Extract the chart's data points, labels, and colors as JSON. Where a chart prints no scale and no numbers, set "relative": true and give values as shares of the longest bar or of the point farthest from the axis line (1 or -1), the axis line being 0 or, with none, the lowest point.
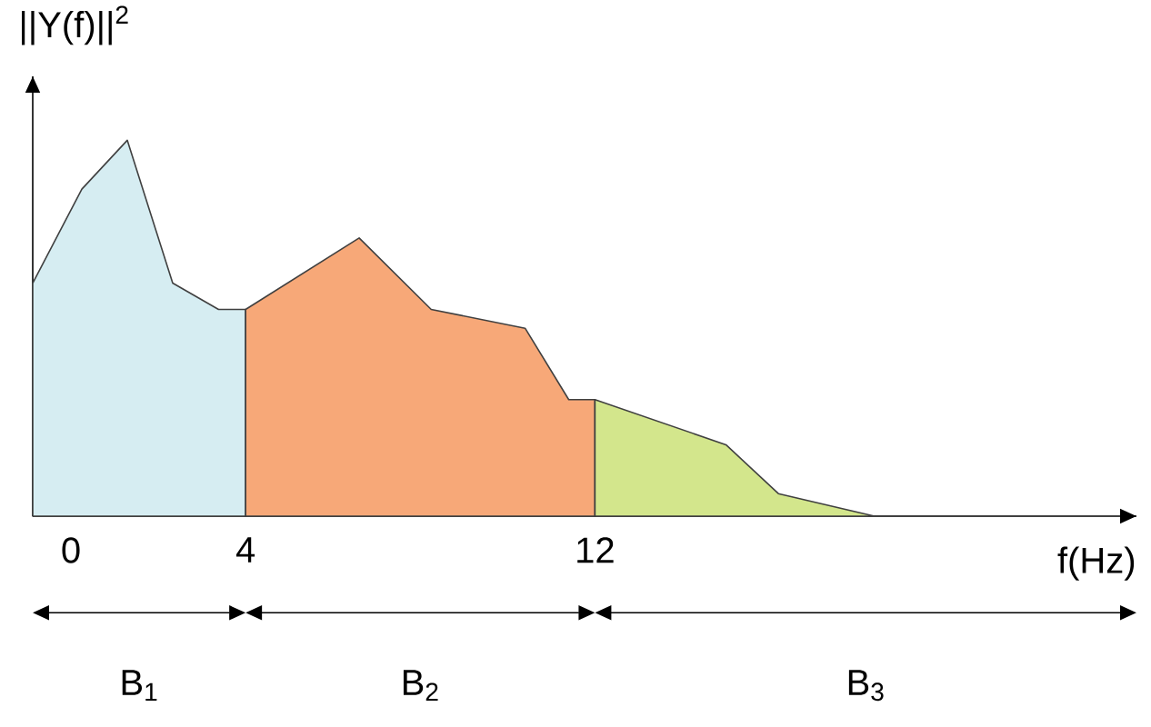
{
  "chart_data": {
    "type": "area",
    "relative": true,
    "ylabel": "||Y(f)||$^{2}$",
    "xlabel": "f(Hz)",
    "xlim": [
      -0.875,
      24.4
    ],
    "xticks": [
      0,
      4,
      12
    ],
    "series": [
      {
        "color": "#d6edf2",
        "x": [
          -0.875,
          0.25,
          1.29,
          2.33,
          3.38,
          4
        ],
        "values": [
          0.62,
          0.87,
          1,
          0.62,
          0.55,
          0.55
        ]
      },
      {
        "color": "#f7a878",
        "x": [
          4,
          6.6,
          8.25,
          10.4,
          11.4,
          12
        ],
        "values": [
          0.55,
          0.74,
          0.55,
          0.5,
          0.31,
          0.31
        ]
      },
      {
        "color": "#d3e68c",
        "x": [
          12,
          15,
          16.2,
          18.4
        ],
        "values": [
          0.31,
          0.19,
          0.06,
          0
        ]
      }
    ],
    "annotations": [
      "B$_{1}$",
      "B$_{2}$",
      "B$_{3}$"
    ]
  }
}
